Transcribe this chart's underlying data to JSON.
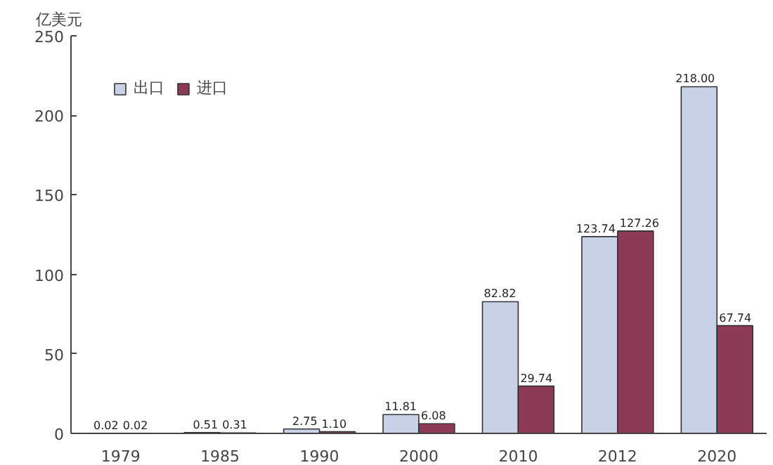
{
  "chart_data": {
    "type": "bar",
    "ylabel": "亿美元",
    "categories": [
      "1979",
      "1985",
      "1990",
      "2000",
      "2010",
      "2012",
      "2020"
    ],
    "series": [
      {
        "name": "出口",
        "color": "#c9d1e6",
        "values": [
          0.02,
          0.51,
          2.75,
          11.81,
          82.82,
          123.74,
          218.0
        ],
        "value_labels": [
          "0.02",
          "0.51",
          "2.75",
          "11.81",
          "82.82",
          "123.74",
          "218.00"
        ]
      },
      {
        "name": "进口",
        "color": "#8c3a55",
        "values": [
          0.02,
          0.31,
          1.1,
          6.08,
          29.74,
          127.26,
          67.74
        ],
        "value_labels": [
          "0.02",
          "0.31",
          "1.10",
          "6.08",
          "29.74",
          "127.26",
          "67.74"
        ]
      }
    ],
    "ylim": [
      0,
      250
    ],
    "yticks": [
      0,
      50,
      100,
      150,
      200,
      250
    ],
    "grid": false,
    "legend": "top left"
  }
}
